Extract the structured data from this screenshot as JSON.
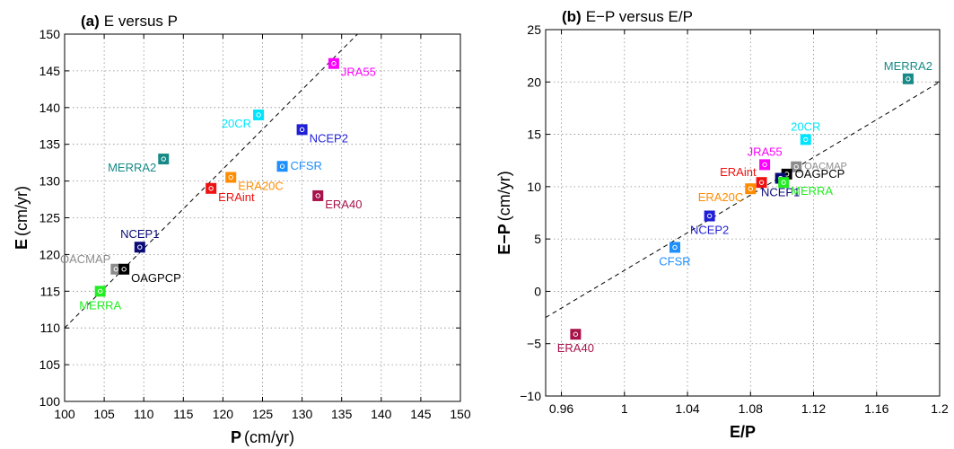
{
  "chart_data": [
    {
      "type": "scatter",
      "panel": "a",
      "title_prefix": "(a)",
      "title": "E versus P",
      "xlabel_bold": "P",
      "xlabel_unit": "(cm/yr)",
      "ylabel_bold": "E",
      "ylabel_unit": "(cm/yr)",
      "xlim": [
        100,
        150
      ],
      "ylim": [
        100,
        150
      ],
      "xticks": [
        "100",
        "105",
        "110",
        "115",
        "120",
        "125",
        "130",
        "135",
        "140",
        "145",
        "150"
      ],
      "yticks": [
        "100",
        "105",
        "110",
        "115",
        "120",
        "125",
        "130",
        "135",
        "140",
        "145",
        "150"
      ],
      "grid": true,
      "fit_line": {
        "x": [
          100,
          137
        ],
        "y": [
          110,
          150
        ]
      },
      "points": [
        {
          "label": "JRA55",
          "x": 134.0,
          "y": 146.0,
          "color": "#ff00ff",
          "label_pos": "right-below"
        },
        {
          "label": "20CR",
          "x": 124.5,
          "y": 139.0,
          "color": "#00e5ff",
          "label_pos": "left-below"
        },
        {
          "label": "NCEP2",
          "x": 130.0,
          "y": 137.0,
          "color": "#1f1fd6",
          "label_pos": "right-below"
        },
        {
          "label": "MERRA2",
          "x": 112.5,
          "y": 133.0,
          "color": "#178a87",
          "label_pos": "left-below"
        },
        {
          "label": "CFSR",
          "x": 127.5,
          "y": 132.0,
          "color": "#1e8fff",
          "label_pos": "right"
        },
        {
          "label": "ERA20C",
          "x": 121.0,
          "y": 130.5,
          "color": "#ff8c00",
          "label_pos": "right-below"
        },
        {
          "label": "ERAint",
          "x": 118.5,
          "y": 129.0,
          "color": "#ee1111",
          "label_pos": "right-below"
        },
        {
          "label": "ERA40",
          "x": 132.0,
          "y": 128.0,
          "color": "#a8124a",
          "label_pos": "right-below"
        },
        {
          "label": "NCEP1",
          "x": 109.5,
          "y": 121.0,
          "color": "#0a0a78",
          "label_pos": "above"
        },
        {
          "label": "OACMAP",
          "x": 106.5,
          "y": 118.0,
          "color": "#8c8c8c",
          "label_pos": "left-above"
        },
        {
          "label": "OAGPCP",
          "x": 107.5,
          "y": 118.0,
          "color": "#000000",
          "label_pos": "right-below"
        },
        {
          "label": "MERRA",
          "x": 104.5,
          "y": 115.0,
          "color": "#22ee22",
          "label_pos": "below"
        }
      ]
    },
    {
      "type": "scatter",
      "panel": "b",
      "title_prefix": "(b)",
      "title": "E−P versus E/P",
      "xlabel_bold": "E/P",
      "xlabel_unit": "",
      "ylabel_bold": "E−P",
      "ylabel_unit": "(cm/yr)",
      "xlim": [
        0.95,
        1.2
      ],
      "ylim": [
        -10,
        25
      ],
      "xticks": [
        {
          "v": 0.96,
          "t": "0.96"
        },
        {
          "v": 1.0,
          "t": "1"
        },
        {
          "v": 1.04,
          "t": "1.04"
        },
        {
          "v": 1.08,
          "t": "1.08"
        },
        {
          "v": 1.12,
          "t": "1.12"
        },
        {
          "v": 1.16,
          "t": "1.16"
        },
        {
          "v": 1.2,
          "t": "1.2"
        }
      ],
      "yticks": [
        {
          "v": -10,
          "t": "−10"
        },
        {
          "v": -5,
          "t": "−5"
        },
        {
          "v": 0,
          "t": "0"
        },
        {
          "v": 5,
          "t": "5"
        },
        {
          "v": 10,
          "t": "10"
        },
        {
          "v": 15,
          "t": "15"
        },
        {
          "v": 20,
          "t": "20"
        },
        {
          "v": 25,
          "t": "25"
        }
      ],
      "grid": true,
      "fit_line": {
        "x": [
          0.95,
          1.2
        ],
        "y": [
          -2.5,
          20
        ]
      },
      "points": [
        {
          "label": "MERRA2",
          "x": 1.18,
          "y": 20.3,
          "color": "#178a87",
          "label_pos": "above"
        },
        {
          "label": "20CR",
          "x": 1.115,
          "y": 14.5,
          "color": "#00e5ff",
          "label_pos": "above"
        },
        {
          "label": "JRA55",
          "x": 1.089,
          "y": 12.1,
          "color": "#ff00ff",
          "label_pos": "above"
        },
        {
          "label": "OACMAP",
          "x": 1.109,
          "y": 11.9,
          "color": "#8c8c8c",
          "label_pos": "right-small"
        },
        {
          "label": "OAGPCP",
          "x": 1.103,
          "y": 11.2,
          "color": "#000000",
          "label_pos": "right"
        },
        {
          "label": "NCEP1",
          "x": 1.099,
          "y": 10.8,
          "color": "#0a0a78",
          "label_pos": "below"
        },
        {
          "label": "MERRA",
          "x": 1.101,
          "y": 10.4,
          "color": "#22ee22",
          "label_pos": "right-below"
        },
        {
          "label": "ERAint",
          "x": 1.087,
          "y": 10.4,
          "color": "#ee1111",
          "label_pos": "left-above"
        },
        {
          "label": "ERA20C",
          "x": 1.08,
          "y": 9.8,
          "color": "#ff8c00",
          "label_pos": "left-below"
        },
        {
          "label": "NCEP2",
          "x": 1.054,
          "y": 7.2,
          "color": "#1f1fd6",
          "label_pos": "below"
        },
        {
          "label": "CFSR",
          "x": 1.032,
          "y": 4.2,
          "color": "#1e8fff",
          "label_pos": "below"
        },
        {
          "label": "ERA40",
          "x": 0.969,
          "y": -4.1,
          "color": "#a8124a",
          "label_pos": "below"
        }
      ]
    }
  ]
}
